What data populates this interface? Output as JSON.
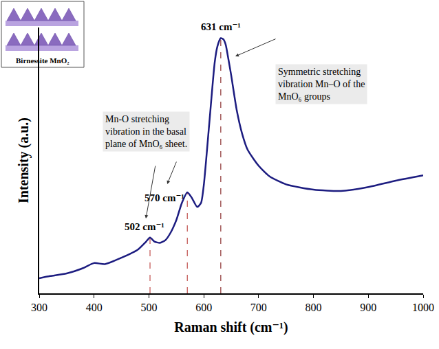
{
  "chart_data": {
    "type": "line",
    "x_label": "Raman shift (cm⁻¹)",
    "y_label": "Intensity (a.u.)",
    "x": [
      300,
      320,
      350,
      380,
      400,
      420,
      450,
      480,
      495,
      502,
      510,
      520,
      530,
      540,
      550,
      560,
      570,
      578,
      588,
      595,
      600,
      610,
      620,
      625,
      631,
      636,
      640,
      645,
      650,
      660,
      670,
      680,
      700,
      720,
      750,
      800,
      850,
      900,
      950,
      1000
    ],
    "values": [
      5.7,
      6.5,
      7.5,
      9.5,
      11.4,
      11,
      13.4,
      16.5,
      19.5,
      21,
      19.5,
      19,
      20,
      23,
      27.6,
      34,
      38,
      36,
      32.5,
      34,
      40.6,
      63.8,
      87,
      93,
      96,
      95.5,
      93.5,
      88,
      82,
      69,
      60,
      54,
      48,
      44,
      41,
      39,
      38.5,
      40,
      42.4,
      44.4
    ],
    "color": "#1c1c80",
    "xlim": [
      300,
      1000
    ],
    "xticks": [
      300,
      400,
      500,
      600,
      700,
      800,
      900,
      1000
    ],
    "ylim": [
      0,
      100
    ],
    "yticks": [],
    "tick_labels": "x",
    "grid": false,
    "peaks": [
      {
        "x": 502,
        "y": 21,
        "label": "502 cm⁻¹"
      },
      {
        "x": 570,
        "y": 38,
        "label": "570 cm⁻¹"
      },
      {
        "x": 631,
        "y": 96,
        "label": "631 cm⁻¹"
      }
    ],
    "annotations": [
      {
        "lines": [
          "Symmetric stretching",
          "vibration Mn–O of the",
          "MnO₆ groups"
        ]
      },
      {
        "lines": [
          "Mn-O stretching",
          "vibration in the basal",
          "plane of MnO₆ sheet."
        ]
      }
    ],
    "inset": {
      "label": "Birnessite MnO₂"
    }
  }
}
